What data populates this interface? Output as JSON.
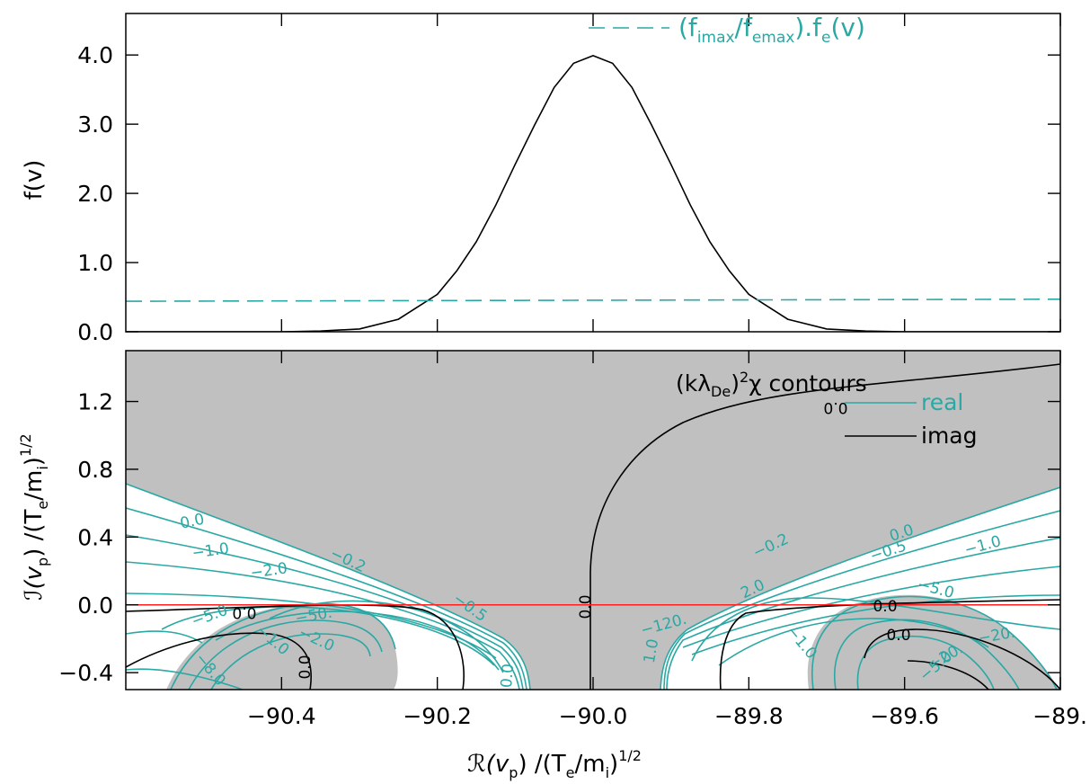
{
  "colors": {
    "teal": "#2aa8a4",
    "black": "#000000",
    "red": "#ff2020",
    "shade": "#c0c0c0"
  },
  "chart_data": [
    {
      "type": "line",
      "panel": "top",
      "ylabel": "f(v)",
      "xlim": [
        -90.6,
        -89.4
      ],
      "ylim": [
        0.0,
        4.6
      ],
      "yticks": [
        "0.0",
        "1.0",
        "2.0",
        "3.0",
        "4.0"
      ],
      "ytick_values": [
        0.0,
        1.0,
        2.0,
        3.0,
        4.0
      ],
      "legend": {
        "placement": "top-right",
        "entry": {
          "prefix": "(f",
          "s1": "imax",
          "mid": "/f",
          "s2": "emax",
          "mid2": ").f",
          "s3": "e",
          "suffix": "(v)"
        }
      },
      "series": [
        {
          "style": "solid-black",
          "x": [
            -90.6,
            -90.4,
            -90.35,
            -90.3,
            -90.25,
            -90.2,
            -90.175,
            -90.15,
            -90.125,
            -90.1,
            -90.075,
            -90.05,
            -90.025,
            -90.0,
            -89.975,
            -89.95,
            -89.925,
            -89.9,
            -89.875,
            -89.85,
            -89.825,
            -89.8,
            -89.75,
            -89.7,
            -89.65,
            -89.6,
            -89.4
          ],
          "y": [
            0.0,
            0.0,
            0.01,
            0.04,
            0.18,
            0.54,
            0.88,
            1.3,
            1.83,
            2.42,
            2.99,
            3.53,
            3.88,
            3.99,
            3.88,
            3.53,
            2.99,
            2.42,
            1.83,
            1.3,
            0.88,
            0.54,
            0.18,
            0.04,
            0.01,
            0.0,
            0.0
          ]
        },
        {
          "style": "dashed-teal",
          "x": [
            -90.6,
            -89.4
          ],
          "y": [
            0.44,
            0.47
          ]
        }
      ]
    },
    {
      "type": "contour",
      "panel": "bottom",
      "xlabel": {
        "pre": "ℛ(v",
        "sub1": "p",
        "mid": ")  /(T",
        "sub2": "e",
        "mid2": "/m",
        "sub3": "i",
        "post": ")",
        "sup": "1/2"
      },
      "ylabel": {
        "pre": "ℐ(v",
        "sub1": "p",
        "mid": ")  /(T",
        "sub2": "e",
        "mid2": "/m",
        "sub3": "i",
        "post": ")",
        "sup": "1/2"
      },
      "xlim": [
        -90.6,
        -89.4
      ],
      "ylim": [
        -0.5,
        1.5
      ],
      "xticks": [
        "−90.4",
        "−90.2",
        "−90.0",
        "−89.8",
        "−89.6",
        "−89."
      ],
      "xtick_values": [
        -90.4,
        -90.2,
        -90.0,
        -89.8,
        -89.6,
        -89.4
      ],
      "yticks": [
        "−0.4",
        "0.0",
        "0.4",
        "0.8",
        "1.2"
      ],
      "ytick_values": [
        -0.4,
        0.0,
        0.4,
        0.8,
        1.2
      ],
      "title": {
        "pre": "(kλ",
        "sub": "De",
        "post": ")",
        "sup": "2",
        "tail": "χ contours"
      },
      "legend": {
        "placement": "top-right",
        "real": "real",
        "imag": "imag"
      },
      "labels": {
        "teal": [
          "0.0",
          "−1.0",
          "−2.0",
          "−5.0",
          "−0.2",
          "−0.5",
          "−50.",
          "−2.0",
          "−1.0",
          "0.0",
          "−0.5",
          "−1.0",
          "−5.0",
          "2.0",
          "−0.2",
          "−20.",
          "−120.",
          "−20.",
          "−5.0",
          "−8.0",
          "−1.0",
          "1.0",
          "0.0"
        ],
        "black": [
          "0.0",
          "0.0",
          "0.0",
          "0.0",
          "0.0",
          "0.0"
        ]
      },
      "reference_line_y": 0.0
    }
  ]
}
